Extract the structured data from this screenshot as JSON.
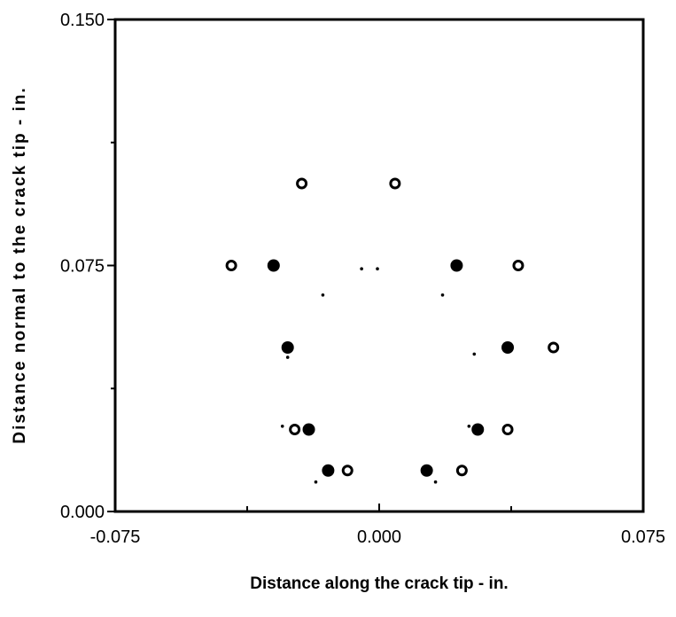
{
  "chart_data": {
    "type": "scatter",
    "title": "",
    "xlabel": "Distance along the crack tip - in.",
    "ylabel": "Distance normal to the crack tip - in.",
    "xlim": [
      -0.075,
      0.075
    ],
    "ylim": [
      0.0,
      0.15
    ],
    "grid": false,
    "x_ticks": [
      {
        "value": -0.075,
        "label": "-0.075"
      },
      {
        "value": 0.0,
        "label": "0.000"
      },
      {
        "value": 0.075,
        "label": "0.075"
      }
    ],
    "y_ticks": [
      {
        "value": 0.0,
        "label": "0.000"
      },
      {
        "value": 0.075,
        "label": "0.075"
      },
      {
        "value": 0.15,
        "label": "0.150"
      }
    ],
    "x_minor_ticks": [
      -0.0375,
      0.0375
    ],
    "y_minor_ticks": [
      0.0375,
      0.1125
    ],
    "series": [
      {
        "marker": "open-circle",
        "color": "#000000",
        "points": [
          [
            -0.022,
            0.1
          ],
          [
            0.0045,
            0.1
          ],
          [
            -0.042,
            0.075
          ],
          [
            0.0395,
            0.075
          ],
          [
            0.0495,
            0.05
          ],
          [
            -0.024,
            0.025
          ],
          [
            0.0365,
            0.025
          ],
          [
            -0.009,
            0.0125
          ],
          [
            0.0235,
            0.0125
          ]
        ]
      },
      {
        "marker": "filled-circle",
        "color": "#000000",
        "points": [
          [
            -0.03,
            0.075
          ],
          [
            0.022,
            0.075
          ],
          [
            -0.026,
            0.05
          ],
          [
            0.0365,
            0.05
          ],
          [
            -0.02,
            0.025
          ],
          [
            0.028,
            0.025
          ],
          [
            -0.0145,
            0.0125
          ],
          [
            0.0135,
            0.0125
          ]
        ]
      },
      {
        "marker": "dot",
        "color": "#000000",
        "points": [
          [
            -0.005,
            0.074
          ],
          [
            -0.0005,
            0.074
          ],
          [
            -0.016,
            0.066
          ],
          [
            0.018,
            0.066
          ],
          [
            0.027,
            0.048
          ],
          [
            -0.026,
            0.047
          ],
          [
            -0.0275,
            0.026
          ],
          [
            0.0255,
            0.026
          ],
          [
            -0.018,
            0.009
          ],
          [
            0.016,
            0.009
          ]
        ]
      }
    ]
  }
}
